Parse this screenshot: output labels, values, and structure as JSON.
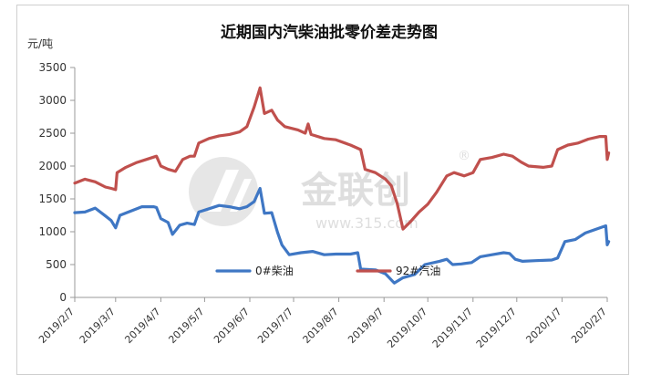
{
  "chart_data": {
    "type": "line",
    "title": "近期国内汽柴油批零价差走势图",
    "unit_label": "元/吨",
    "ylim": [
      0,
      3500
    ],
    "yticks": [
      0,
      500,
      1000,
      1500,
      2000,
      2500,
      3000,
      3500
    ],
    "grid": false,
    "legend_position": "inside-bottom-center",
    "x_tick_labels": [
      "2019/2/7",
      "2019/3/7",
      "2019/4/7",
      "2019/5/7",
      "2019/6/7",
      "2019/7/7",
      "2019/8/7",
      "2019/9/7",
      "2019/10/7",
      "2019/11/7",
      "2019/12/7",
      "2020/1/7",
      "2020/2/7"
    ],
    "series": [
      {
        "name": "0#柴油",
        "color": "#3f77c4",
        "points": [
          [
            "2019-02-07",
            1290
          ],
          [
            "2019-02-14",
            1300
          ],
          [
            "2019-02-21",
            1360
          ],
          [
            "2019-02-28",
            1240
          ],
          [
            "2019-03-04",
            1170
          ],
          [
            "2019-03-07",
            1060
          ],
          [
            "2019-03-10",
            1250
          ],
          [
            "2019-03-18",
            1320
          ],
          [
            "2019-03-25",
            1380
          ],
          [
            "2019-04-02",
            1380
          ],
          [
            "2019-04-04",
            1370
          ],
          [
            "2019-04-07",
            1200
          ],
          [
            "2019-04-12",
            1140
          ],
          [
            "2019-04-15",
            960
          ],
          [
            "2019-04-20",
            1100
          ],
          [
            "2019-04-25",
            1130
          ],
          [
            "2019-04-30",
            1110
          ],
          [
            "2019-05-03",
            1300
          ],
          [
            "2019-05-10",
            1350
          ],
          [
            "2019-05-17",
            1400
          ],
          [
            "2019-05-24",
            1380
          ],
          [
            "2019-05-31",
            1350
          ],
          [
            "2019-06-05",
            1380
          ],
          [
            "2019-06-10",
            1460
          ],
          [
            "2019-06-14",
            1660
          ],
          [
            "2019-06-17",
            1280
          ],
          [
            "2019-06-22",
            1290
          ],
          [
            "2019-06-26",
            990
          ],
          [
            "2019-06-29",
            800
          ],
          [
            "2019-07-04",
            650
          ],
          [
            "2019-07-12",
            680
          ],
          [
            "2019-07-20",
            700
          ],
          [
            "2019-07-28",
            650
          ],
          [
            "2019-08-05",
            660
          ],
          [
            "2019-08-15",
            660
          ],
          [
            "2019-08-20",
            680
          ],
          [
            "2019-08-22",
            430
          ],
          [
            "2019-09-01",
            420
          ],
          [
            "2019-09-08",
            360
          ],
          [
            "2019-09-14",
            220
          ],
          [
            "2019-09-20",
            300
          ],
          [
            "2019-09-28",
            350
          ],
          [
            "2019-10-05",
            500
          ],
          [
            "2019-10-15",
            550
          ],
          [
            "2019-10-20",
            580
          ],
          [
            "2019-10-24",
            500
          ],
          [
            "2019-10-30",
            510
          ],
          [
            "2019-11-06",
            530
          ],
          [
            "2019-11-12",
            620
          ],
          [
            "2019-11-20",
            650
          ],
          [
            "2019-11-28",
            680
          ],
          [
            "2019-12-02",
            670
          ],
          [
            "2019-12-06",
            580
          ],
          [
            "2019-12-11",
            550
          ],
          [
            "2019-12-20",
            560
          ],
          [
            "2019-12-31",
            570
          ],
          [
            "2020-01-04",
            600
          ],
          [
            "2020-01-09",
            850
          ],
          [
            "2020-01-16",
            880
          ],
          [
            "2020-01-23",
            980
          ],
          [
            "2020-02-02",
            1060
          ],
          [
            "2020-02-06",
            1090
          ],
          [
            "2020-02-07",
            800
          ],
          [
            "2020-02-08",
            850
          ]
        ]
      },
      {
        "name": "92#汽油",
        "color": "#c0504d",
        "points": [
          [
            "2019-02-07",
            1740
          ],
          [
            "2019-02-14",
            1800
          ],
          [
            "2019-02-21",
            1760
          ],
          [
            "2019-02-28",
            1680
          ],
          [
            "2019-03-04",
            1660
          ],
          [
            "2019-03-07",
            1640
          ],
          [
            "2019-03-08",
            1900
          ],
          [
            "2019-03-14",
            1980
          ],
          [
            "2019-03-21",
            2050
          ],
          [
            "2019-03-28",
            2100
          ],
          [
            "2019-04-04",
            2150
          ],
          [
            "2019-04-07",
            2000
          ],
          [
            "2019-04-12",
            1950
          ],
          [
            "2019-04-17",
            1920
          ],
          [
            "2019-04-22",
            2100
          ],
          [
            "2019-04-27",
            2150
          ],
          [
            "2019-04-30",
            2150
          ],
          [
            "2019-05-03",
            2350
          ],
          [
            "2019-05-10",
            2420
          ],
          [
            "2019-05-17",
            2460
          ],
          [
            "2019-05-24",
            2480
          ],
          [
            "2019-05-31",
            2520
          ],
          [
            "2019-06-05",
            2600
          ],
          [
            "2019-06-10",
            2900
          ],
          [
            "2019-06-14",
            3190
          ],
          [
            "2019-06-17",
            2800
          ],
          [
            "2019-06-22",
            2850
          ],
          [
            "2019-06-26",
            2700
          ],
          [
            "2019-07-01",
            2600
          ],
          [
            "2019-07-10",
            2550
          ],
          [
            "2019-07-15",
            2500
          ],
          [
            "2019-07-17",
            2640
          ],
          [
            "2019-07-19",
            2480
          ],
          [
            "2019-07-28",
            2420
          ],
          [
            "2019-08-05",
            2400
          ],
          [
            "2019-08-15",
            2320
          ],
          [
            "2019-08-22",
            2250
          ],
          [
            "2019-08-25",
            1950
          ],
          [
            "2019-09-01",
            1900
          ],
          [
            "2019-09-08",
            1800
          ],
          [
            "2019-09-12",
            1700
          ],
          [
            "2019-09-16",
            1430
          ],
          [
            "2019-09-20",
            1040
          ],
          [
            "2019-09-25",
            1150
          ],
          [
            "2019-10-01",
            1300
          ],
          [
            "2019-10-07",
            1420
          ],
          [
            "2019-10-13",
            1600
          ],
          [
            "2019-10-20",
            1850
          ],
          [
            "2019-10-25",
            1900
          ],
          [
            "2019-11-01",
            1850
          ],
          [
            "2019-11-07",
            1900
          ],
          [
            "2019-11-12",
            2100
          ],
          [
            "2019-11-20",
            2130
          ],
          [
            "2019-11-28",
            2180
          ],
          [
            "2019-12-04",
            2150
          ],
          [
            "2019-12-10",
            2060
          ],
          [
            "2019-12-15",
            2000
          ],
          [
            "2019-12-25",
            1980
          ],
          [
            "2019-12-31",
            2000
          ],
          [
            "2020-01-04",
            2250
          ],
          [
            "2020-01-11",
            2320
          ],
          [
            "2020-01-18",
            2350
          ],
          [
            "2020-01-25",
            2410
          ],
          [
            "2020-02-02",
            2450
          ],
          [
            "2020-02-06",
            2450
          ],
          [
            "2020-02-07",
            2100
          ],
          [
            "2020-02-08",
            2200
          ]
        ]
      }
    ]
  },
  "watermark": {
    "brand_cn": "金联创",
    "url": "www.315.com",
    "mark": "®"
  }
}
